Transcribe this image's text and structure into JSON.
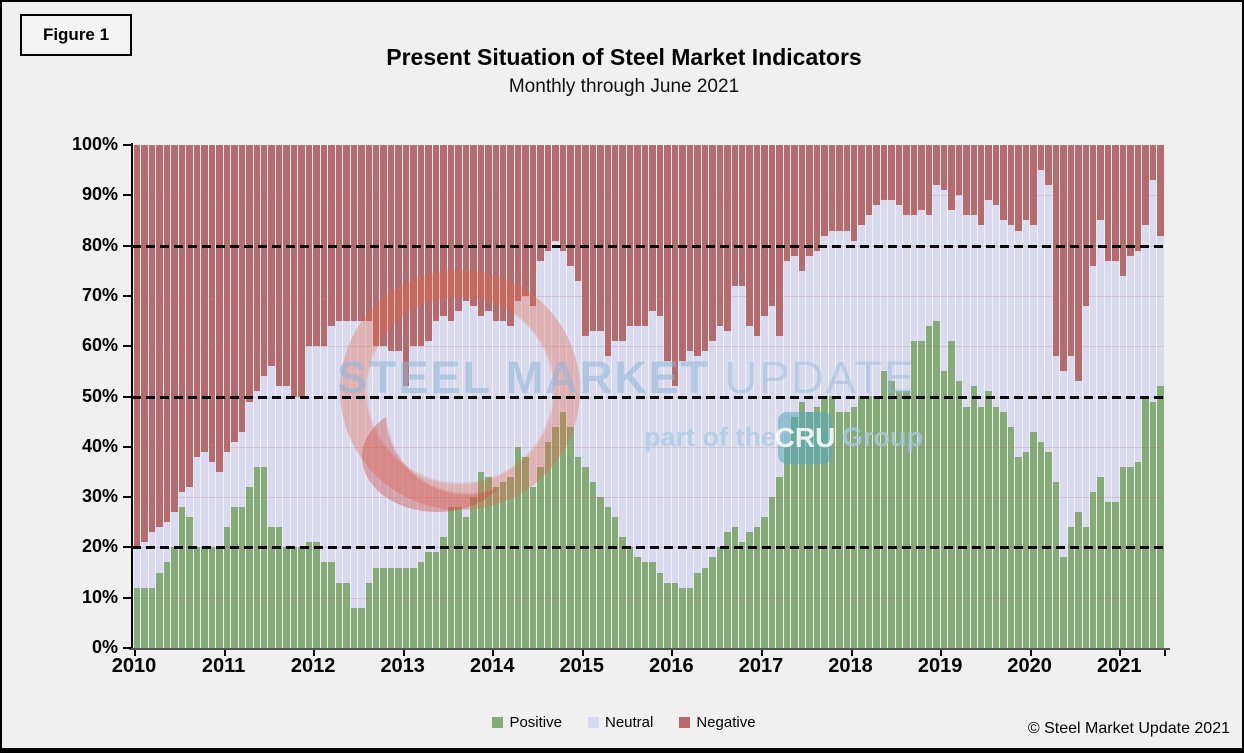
{
  "figure_label": "Figure 1",
  "header": {
    "title": "Present Situation of Steel Market Indicators",
    "subtitle": "Monthly through June 2021"
  },
  "y_axis": {
    "tick_labels": [
      "100%",
      "90%",
      "80%",
      "70%",
      "60%",
      "50%",
      "40%",
      "30%",
      "20%",
      "10%",
      "0%"
    ]
  },
  "x_axis": {
    "years": [
      "2010",
      "2011",
      "2012",
      "2013",
      "2014",
      "2015",
      "2016",
      "2017",
      "2018",
      "2019",
      "2020",
      "2021"
    ]
  },
  "legend": {
    "items": [
      {
        "label": "Positive",
        "color": "#84ab78"
      },
      {
        "label": "Neutral",
        "color": "#d9daf0"
      },
      {
        "label": "Negative",
        "color": "#b56a6e"
      }
    ]
  },
  "watermark": {
    "line1_bold": "STEEL MARKET",
    "line1_light": "UPDATE",
    "part_of": "part of the",
    "cru": "CRU",
    "group": "Group"
  },
  "copyright": "© Steel Market Update 2021",
  "chart_data": {
    "type": "bar",
    "stacked": true,
    "unit": "percent",
    "title": "Present Situation of Steel Market Indicators",
    "subtitle": "Monthly through June 2021",
    "ylim": [
      0,
      100
    ],
    "y_ticks": [
      0,
      10,
      20,
      30,
      40,
      50,
      60,
      70,
      80,
      90,
      100
    ],
    "dashed_gridlines": [
      20,
      50,
      80
    ],
    "grid": "faint horizontal lines every 10%",
    "legend_position": "bottom",
    "x_tick_labels": [
      "2010",
      "2011",
      "2012",
      "2013",
      "2014",
      "2015",
      "2016",
      "2017",
      "2018",
      "2019",
      "2020",
      "2021"
    ],
    "categories": [
      "2010-01",
      "2010-02",
      "2010-03",
      "2010-04",
      "2010-05",
      "2010-06",
      "2010-07",
      "2010-08",
      "2010-09",
      "2010-10",
      "2010-11",
      "2010-12",
      "2011-01",
      "2011-02",
      "2011-03",
      "2011-04",
      "2011-05",
      "2011-06",
      "2011-07",
      "2011-08",
      "2011-09",
      "2011-10",
      "2011-11",
      "2011-12",
      "2012-01",
      "2012-02",
      "2012-03",
      "2012-04",
      "2012-05",
      "2012-06",
      "2012-07",
      "2012-08",
      "2012-09",
      "2012-10",
      "2012-11",
      "2012-12",
      "2013-01",
      "2013-02",
      "2013-03",
      "2013-04",
      "2013-05",
      "2013-06",
      "2013-07",
      "2013-08",
      "2013-09",
      "2013-10",
      "2013-11",
      "2013-12",
      "2014-01",
      "2014-02",
      "2014-03",
      "2014-04",
      "2014-05",
      "2014-06",
      "2014-07",
      "2014-08",
      "2014-09",
      "2014-10",
      "2014-11",
      "2014-12",
      "2015-01",
      "2015-02",
      "2015-03",
      "2015-04",
      "2015-05",
      "2015-06",
      "2015-07",
      "2015-08",
      "2015-09",
      "2015-10",
      "2015-11",
      "2015-12",
      "2016-01",
      "2016-02",
      "2016-03",
      "2016-04",
      "2016-05",
      "2016-06",
      "2016-07",
      "2016-08",
      "2016-09",
      "2016-10",
      "2016-11",
      "2016-12",
      "2017-01",
      "2017-02",
      "2017-03",
      "2017-04",
      "2017-05",
      "2017-06",
      "2017-07",
      "2017-08",
      "2017-09",
      "2017-10",
      "2017-11",
      "2017-12",
      "2018-01",
      "2018-02",
      "2018-03",
      "2018-04",
      "2018-05",
      "2018-06",
      "2018-07",
      "2018-08",
      "2018-09",
      "2018-10",
      "2018-11",
      "2018-12",
      "2019-01",
      "2019-02",
      "2019-03",
      "2019-04",
      "2019-05",
      "2019-06",
      "2019-07",
      "2019-08",
      "2019-09",
      "2019-10",
      "2019-11",
      "2019-12",
      "2020-01",
      "2020-02",
      "2020-03",
      "2020-04",
      "2020-05",
      "2020-06",
      "2020-07",
      "2020-08",
      "2020-09",
      "2020-10",
      "2020-11",
      "2020-12",
      "2021-01",
      "2021-02",
      "2021-03",
      "2021-04",
      "2021-05",
      "2021-06"
    ],
    "series": [
      {
        "name": "Positive",
        "color": "#84ab78",
        "values": [
          12,
          12,
          12,
          15,
          17,
          20,
          28,
          26,
          20,
          20,
          20,
          20,
          24,
          28,
          28,
          32,
          36,
          36,
          24,
          24,
          20,
          20,
          20,
          21,
          21,
          17,
          17,
          13,
          13,
          8,
          8,
          13,
          16,
          16,
          16,
          16,
          16,
          16,
          17,
          19,
          19,
          22,
          28,
          28,
          26,
          30,
          35,
          34,
          32,
          33,
          34,
          40,
          38,
          32,
          36,
          41,
          44,
          47,
          44,
          38,
          36,
          33,
          30,
          28,
          26,
          22,
          20,
          18,
          17,
          17,
          15,
          13,
          13,
          12,
          12,
          15,
          16,
          18,
          20,
          23,
          24,
          21,
          23,
          24,
          26,
          30,
          34,
          40,
          46,
          49,
          47,
          48,
          50,
          50,
          47,
          47,
          48,
          50,
          50,
          50,
          55,
          53,
          51,
          51,
          61,
          61,
          64,
          65,
          55,
          61,
          53,
          48,
          52,
          48,
          51,
          48,
          47,
          44,
          38,
          39,
          43,
          41,
          39,
          33,
          18,
          24,
          27,
          24,
          31,
          34,
          29,
          29,
          36,
          36,
          37,
          50,
          49,
          52
        ]
      },
      {
        "name": "Neutral",
        "color": "#d9daf0",
        "values": [
          8,
          9,
          11,
          9,
          8,
          7,
          3,
          6,
          18,
          19,
          17,
          15,
          15,
          13,
          15,
          17,
          15,
          18,
          32,
          28,
          32,
          30,
          30,
          39,
          39,
          43,
          47,
          52,
          52,
          57,
          57,
          52,
          44,
          44,
          43,
          43,
          36,
          44,
          43,
          42,
          46,
          44,
          37,
          39,
          43,
          38,
          31,
          33,
          33,
          32,
          30,
          29,
          32,
          36,
          41,
          38,
          37,
          32,
          32,
          35,
          26,
          30,
          33,
          30,
          35,
          39,
          44,
          46,
          47,
          50,
          51,
          44,
          39,
          45,
          47,
          43,
          43,
          43,
          44,
          40,
          48,
          51,
          41,
          38,
          40,
          38,
          28,
          37,
          32,
          26,
          31,
          31,
          32,
          33,
          36,
          36,
          33,
          34,
          36,
          38,
          34,
          36,
          37,
          35,
          25,
          26,
          22,
          27,
          36,
          26,
          37,
          38,
          34,
          36,
          38,
          40,
          38,
          40,
          45,
          46,
          41,
          54,
          53,
          25,
          37,
          34,
          26,
          44,
          45,
          51,
          48,
          48,
          38,
          42,
          42,
          34,
          44,
          30
        ]
      },
      {
        "name": "Negative",
        "color": "#b56a6e",
        "values": [
          80,
          79,
          77,
          76,
          75,
          73,
          69,
          68,
          62,
          61,
          63,
          65,
          61,
          59,
          57,
          51,
          49,
          46,
          44,
          48,
          48,
          50,
          50,
          40,
          40,
          40,
          36,
          35,
          35,
          35,
          35,
          35,
          40,
          40,
          41,
          41,
          48,
          40,
          40,
          39,
          35,
          34,
          35,
          33,
          31,
          32,
          34,
          33,
          35,
          35,
          36,
          31,
          30,
          32,
          23,
          21,
          19,
          21,
          24,
          27,
          38,
          37,
          37,
          42,
          39,
          39,
          36,
          36,
          36,
          33,
          34,
          43,
          48,
          43,
          41,
          42,
          41,
          39,
          36,
          37,
          28,
          28,
          36,
          38,
          34,
          32,
          38,
          23,
          22,
          25,
          22,
          21,
          18,
          17,
          17,
          17,
          19,
          16,
          14,
          12,
          11,
          11,
          12,
          14,
          14,
          13,
          14,
          8,
          9,
          13,
          10,
          14,
          14,
          16,
          11,
          12,
          15,
          16,
          17,
          15,
          16,
          5,
          8,
          42,
          45,
          42,
          47,
          32,
          24,
          15,
          23,
          23,
          26,
          22,
          21,
          16,
          7,
          18
        ]
      }
    ]
  }
}
